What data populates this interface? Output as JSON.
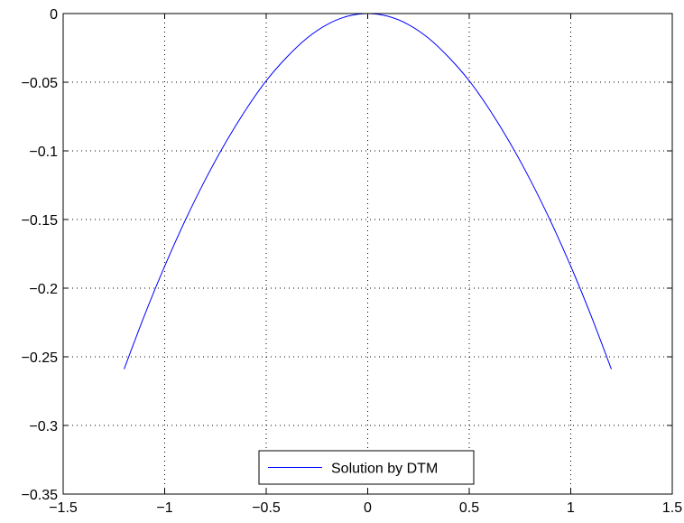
{
  "chart_data": {
    "type": "line",
    "title": "",
    "xlabel": "",
    "ylabel": "",
    "xlim": [
      -1.5,
      1.5
    ],
    "ylim": [
      -0.35,
      0
    ],
    "x_ticks": [
      -1.5,
      -1,
      -0.5,
      0,
      0.5,
      1,
      1.5
    ],
    "x_tick_labels": [
      "−1.5",
      "−1",
      "−0.5",
      "0",
      "0.5",
      "1",
      "1.5"
    ],
    "y_ticks": [
      0,
      -0.05,
      -0.1,
      -0.15,
      -0.2,
      -0.25,
      -0.3,
      -0.35
    ],
    "y_tick_labels": [
      "0",
      "−0.05",
      "−0.1",
      "−0.15",
      "−0.2",
      "−0.25",
      "−0.3",
      "−0.35"
    ],
    "grid": true,
    "legend_position": "bottom-center",
    "series": [
      {
        "name": "Solution by DTM",
        "color": "#0000ff",
        "x": [
          -1.2,
          -1.1,
          -1.0,
          -0.9,
          -0.8,
          -0.7,
          -0.6,
          -0.5,
          -0.4,
          -0.3,
          -0.2,
          -0.1,
          0,
          0.1,
          0.2,
          0.3,
          0.4,
          0.5,
          0.6,
          0.7,
          0.8,
          0.9,
          1.0,
          1.1,
          1.2
        ],
        "y": [
          -0.259,
          -0.22,
          -0.184,
          -0.151,
          -0.121,
          -0.094,
          -0.07,
          -0.049,
          -0.032,
          -0.018,
          -0.008,
          -0.002,
          0,
          -0.002,
          -0.008,
          -0.018,
          -0.032,
          -0.049,
          -0.07,
          -0.094,
          -0.121,
          -0.151,
          -0.184,
          -0.22,
          -0.259
        ]
      }
    ]
  }
}
